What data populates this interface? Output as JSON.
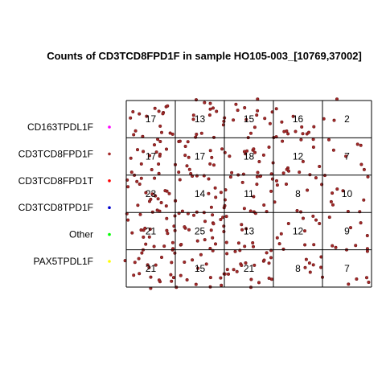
{
  "chart_data": {
    "type": "heatmap",
    "title": "Counts of CD3TCD8FPD1F in sample HO105-003_[10769,37002]",
    "grid": true,
    "columns": 5,
    "rows": 5,
    "counts": [
      [
        17,
        13,
        15,
        16,
        2
      ],
      [
        17,
        17,
        18,
        12,
        7
      ],
      [
        23,
        14,
        11,
        8,
        10
      ],
      [
        21,
        25,
        13,
        12,
        9
      ],
      [
        21,
        15,
        21,
        8,
        7
      ]
    ],
    "point_color": "#a52a2a",
    "legend": {
      "placement": "left",
      "entries": [
        {
          "label": "CD163TPDL1F",
          "color": "#ff00ff"
        },
        {
          "label": "CD3TCD8FPD1F",
          "color": "#a52a2a"
        },
        {
          "label": "CD3TCD8FPD1T",
          "color": "#ff0000"
        },
        {
          "label": "CD3TCD8TPD1F",
          "color": "#0000cd"
        },
        {
          "label": "Other",
          "color": "#00ff00"
        },
        {
          "label": "PAX5TPDL1F",
          "color": "#ffff00"
        }
      ]
    }
  }
}
